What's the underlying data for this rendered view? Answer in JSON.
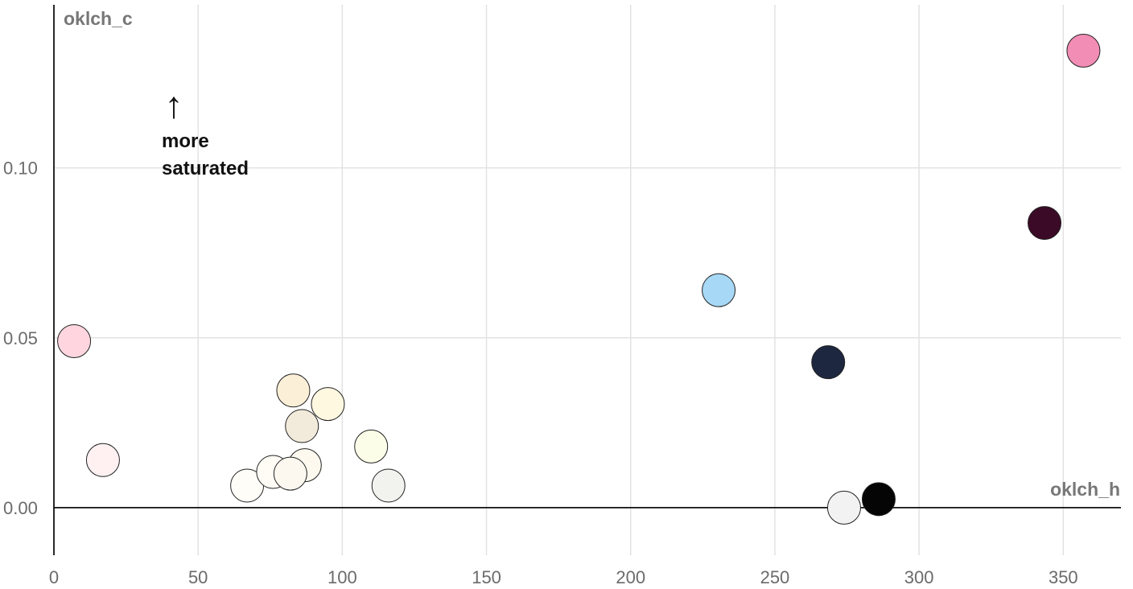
{
  "chart_data": {
    "type": "scatter",
    "title": "",
    "xlabel": "oklch_h",
    "ylabel": "oklch_c",
    "xlim": [
      0,
      370
    ],
    "ylim": [
      -0.014,
      0.148
    ],
    "xticks": [
      0,
      50,
      100,
      150,
      200,
      250,
      300,
      350
    ],
    "xtick_labels": [
      "0",
      "50",
      "100",
      "150",
      "200",
      "250",
      "300",
      "350"
    ],
    "yticks": [
      0.0,
      0.05,
      0.1
    ],
    "ytick_labels": [
      "0.00",
      "0.05",
      "0.10"
    ],
    "grid": true,
    "annotation": {
      "arrow": "↑",
      "lines": [
        "more",
        "saturated"
      ]
    },
    "points": [
      {
        "x": 7,
        "y": 0.049,
        "color": "#ffd6df"
      },
      {
        "x": 17,
        "y": 0.014,
        "color": "#fff1f2"
      },
      {
        "x": 67,
        "y": 0.0065,
        "color": "#fffdf8"
      },
      {
        "x": 76,
        "y": 0.0105,
        "color": "#fffbf5"
      },
      {
        "x": 83,
        "y": 0.0345,
        "color": "#fcefd8"
      },
      {
        "x": 86,
        "y": 0.024,
        "color": "#f2ebdc"
      },
      {
        "x": 87,
        "y": 0.0125,
        "color": "#fdf9ef"
      },
      {
        "x": 82,
        "y": 0.01,
        "color": "#fcf8f0"
      },
      {
        "x": 95,
        "y": 0.0305,
        "color": "#fff8e1"
      },
      {
        "x": 110,
        "y": 0.018,
        "color": "#fbfde9"
      },
      {
        "x": 116,
        "y": 0.0065,
        "color": "#f2f3ef"
      },
      {
        "x": 230.5,
        "y": 0.064,
        "color": "#a7d8f5"
      },
      {
        "x": 268.5,
        "y": 0.0428,
        "color": "#1e2740"
      },
      {
        "x": 274,
        "y": 0.0,
        "color": "#f2f2f2"
      },
      {
        "x": 286,
        "y": 0.0025,
        "color": "#050505"
      },
      {
        "x": 343.5,
        "y": 0.0838,
        "color": "#3b0a26"
      },
      {
        "x": 357,
        "y": 0.1345,
        "color": "#f28db5"
      }
    ]
  }
}
